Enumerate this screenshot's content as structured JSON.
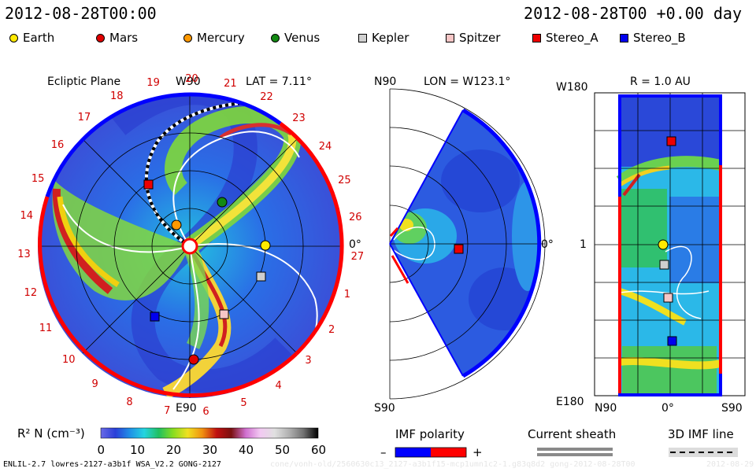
{
  "header": {
    "left_timestamp": "2012-08-28T00:00",
    "right_timestamp": "2012-08-28T00 +0.00 day"
  },
  "legend": [
    {
      "name": "Earth",
      "shape": "circle",
      "color": "#ffea00"
    },
    {
      "name": "Mars",
      "shape": "circle",
      "color": "#e00000"
    },
    {
      "name": "Mercury",
      "shape": "circle",
      "color": "#ff9900"
    },
    {
      "name": "Venus",
      "shape": "circle",
      "color": "#138a13"
    },
    {
      "name": "Kepler",
      "shape": "square",
      "color": "#cfcfcf"
    },
    {
      "name": "Spitzer",
      "shape": "square",
      "color": "#f7c6c6"
    },
    {
      "name": "Stereo_A",
      "shape": "square",
      "color": "#ee0000"
    },
    {
      "name": "Stereo_B",
      "shape": "square",
      "color": "#0000ee"
    }
  ],
  "ecliptic": {
    "title": "Ecliptic Plane",
    "top_label": "W90",
    "bottom_label": "E90",
    "right_label": "0°",
    "lat_label": "LAT = 7.11°",
    "carrington_ticks": [
      "19",
      "20",
      "21",
      "22",
      "23",
      "24",
      "25",
      "26",
      "27",
      "1",
      "2",
      "3",
      "4",
      "5",
      "6",
      "7",
      "8",
      "9",
      "10",
      "11",
      "12",
      "13",
      "14",
      "15",
      "16",
      "17",
      "18"
    ]
  },
  "meridional": {
    "top_label": "N90",
    "bottom_label": "S90",
    "right_label": "0°",
    "lon_label": "LON = W123.1°"
  },
  "sphere_map": {
    "title": "R = 1.0 AU",
    "top_left": "W180",
    "bottom_left": "E180",
    "mid_left": "1",
    "bottom_n": "N90",
    "bottom_center": "0°",
    "bottom_s": "S90"
  },
  "colorbar": {
    "label": "R² N (cm⁻³)",
    "ticks": [
      "0",
      "10",
      "20",
      "30",
      "40",
      "50",
      "60"
    ],
    "colors": [
      "#6a6ae6",
      "#2a3fd8",
      "#1f8fe6",
      "#25d4e0",
      "#20c060",
      "#88dd20",
      "#f0e020",
      "#f09010",
      "#c01010",
      "#7a1010",
      "#d070d0",
      "#f2c8f2",
      "#e0e0e0",
      "#b0b0b0",
      "#707070",
      "#000000"
    ]
  },
  "imf": {
    "title": "IMF polarity",
    "minus": "–",
    "plus": "+",
    "neg_color": "#0000ff",
    "pos_color": "#ff0000"
  },
  "current_sheath": {
    "title": "Current sheath"
  },
  "imf_line": {
    "title": "3D IMF line"
  },
  "footer": {
    "left": "ENLIL-2.7 lowres-2127-a3b1f WSA_V2.2 GONG-2127",
    "right": "cone/vonh-old/2560630c13_2127-a3b1f15-mcp1umn1c2-1.g83q8d2 gong-2012-08-28T00",
    "far_right": "2012-08-29"
  }
}
